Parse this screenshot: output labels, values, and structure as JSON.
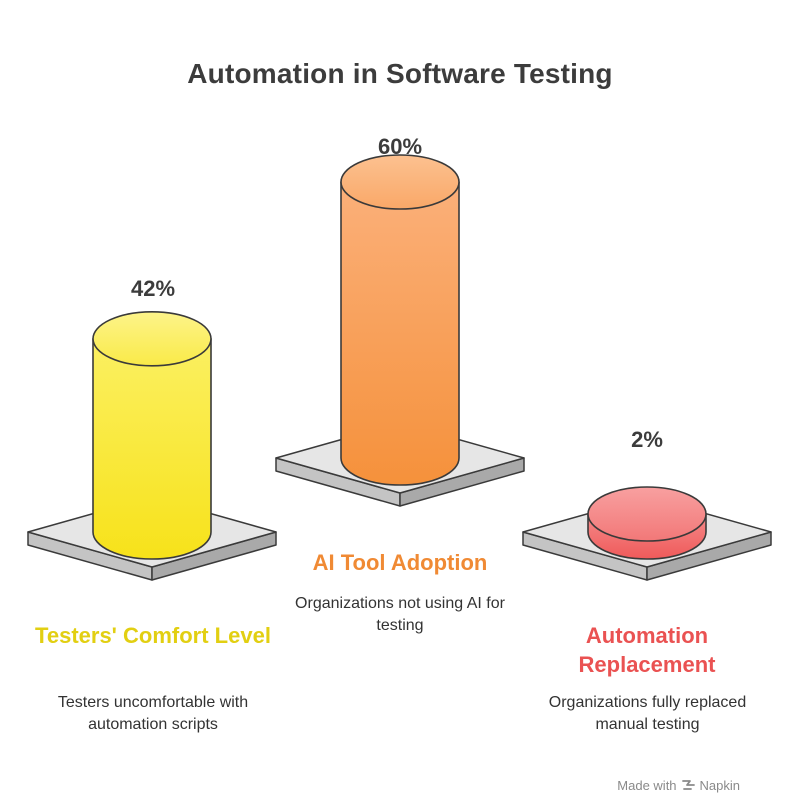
{
  "chart_data": {
    "type": "bar",
    "title": "Automation in Software Testing",
    "categories": [
      "Testers' Comfort Level",
      "AI Tool Adoption",
      "Automation Replacement"
    ],
    "values": [
      42,
      60,
      2
    ],
    "value_labels": [
      "42%",
      "60%",
      "2%"
    ],
    "descriptions": [
      "Testers uncomfortable with automation scripts",
      "Organizations not using AI for testing",
      "Organizations fully replaced manual testing"
    ],
    "colors": [
      "#f7e21a",
      "#f5913b",
      "#ef5a5a"
    ],
    "ylim": [
      0,
      60
    ]
  },
  "footer": {
    "prefix": "Made with",
    "brand": "Napkin"
  }
}
